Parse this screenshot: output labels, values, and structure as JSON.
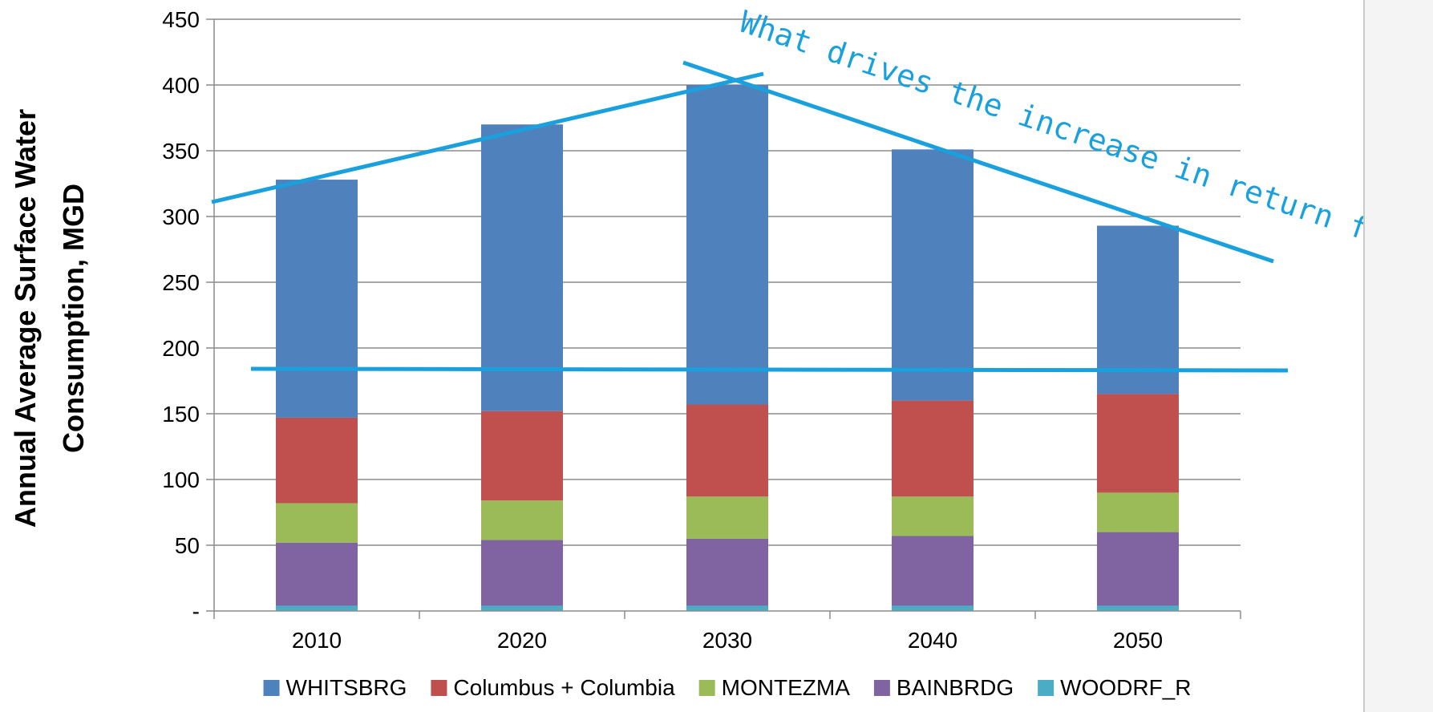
{
  "chart_data": {
    "type": "bar",
    "stacked": true,
    "categories": [
      "2010",
      "2020",
      "2030",
      "2040",
      "2050"
    ],
    "ylabel_lines": [
      "Annual Average Surface Water",
      "Consumption, MGD"
    ],
    "ylim": [
      0,
      450
    ],
    "yticks": [
      {
        "value": 0,
        "label": "-"
      },
      {
        "value": 50,
        "label": "50"
      },
      {
        "value": 100,
        "label": "100"
      },
      {
        "value": 150,
        "label": "150"
      },
      {
        "value": 200,
        "label": "200"
      },
      {
        "value": 250,
        "label": "250"
      },
      {
        "value": 300,
        "label": "300"
      },
      {
        "value": 350,
        "label": "350"
      },
      {
        "value": 400,
        "label": "400"
      },
      {
        "value": 450,
        "label": "450"
      }
    ],
    "grid": true,
    "legend_position": "bottom",
    "series": [
      {
        "name": "WOODRF_R",
        "color": "#4bacc6",
        "values": [
          4,
          4,
          4,
          4,
          4
        ]
      },
      {
        "name": "BAINBRDG",
        "color": "#8064a2",
        "values": [
          48,
          50,
          51,
          53,
          56
        ]
      },
      {
        "name": "MONTEZMA",
        "color": "#9bbb59",
        "values": [
          30,
          30,
          32,
          30,
          30
        ]
      },
      {
        "name": "Columbus + Columbia",
        "color": "#c0504d",
        "values": [
          65,
          68,
          70,
          73,
          75
        ]
      },
      {
        "name": "WHITSBRG",
        "color": "#4f81bd",
        "values": [
          181,
          218,
          243,
          191,
          128
        ]
      }
    ],
    "legend_order": [
      "WHITSBRG",
      "Columbus + Columbia",
      "MONTEZMA",
      "BAINBRDG",
      "WOODRF_R"
    ],
    "annotation": {
      "text": "What drives the increase in return flow?",
      "color": "#1aa0dc"
    }
  }
}
